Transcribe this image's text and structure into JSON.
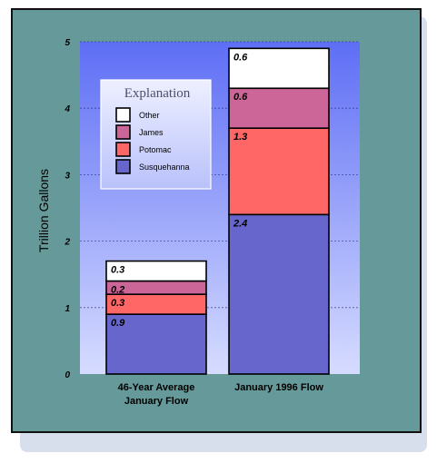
{
  "chart_data": {
    "type": "bar",
    "stacked": true,
    "categories": [
      "46-Year Average January Flow",
      "January 1996 Flow"
    ],
    "category_lines": [
      [
        "46-Year Average",
        "January Flow"
      ],
      [
        "January 1996 Flow"
      ]
    ],
    "ylabel": "Trillion Gallons",
    "ylim": [
      0,
      5
    ],
    "yticks": [
      "0",
      "1",
      "2",
      "3",
      "4",
      "5"
    ],
    "grid": true,
    "legend": {
      "title": "Explanation",
      "placement": "top-left"
    },
    "series": [
      {
        "name": "Susquehanna",
        "color": "#6666cc",
        "values": [
          0.9,
          2.4
        ],
        "labels": [
          "0.9",
          "2.4"
        ]
      },
      {
        "name": "Potomac",
        "color": "#ff6666",
        "values": [
          0.3,
          1.3
        ],
        "labels": [
          "0.3",
          "1.3"
        ]
      },
      {
        "name": "James",
        "color": "#cc6699",
        "values": [
          0.2,
          0.6
        ],
        "labels": [
          "0.2",
          "0.6"
        ]
      },
      {
        "name": "Other",
        "color": "#ffffff",
        "values": [
          0.3,
          0.6
        ],
        "labels": [
          "0.3",
          "0.6"
        ]
      }
    ],
    "colors": {
      "frame": "#669999",
      "plot_top": "#5e6ef5",
      "plot_bottom": "#d6dcff"
    }
  }
}
